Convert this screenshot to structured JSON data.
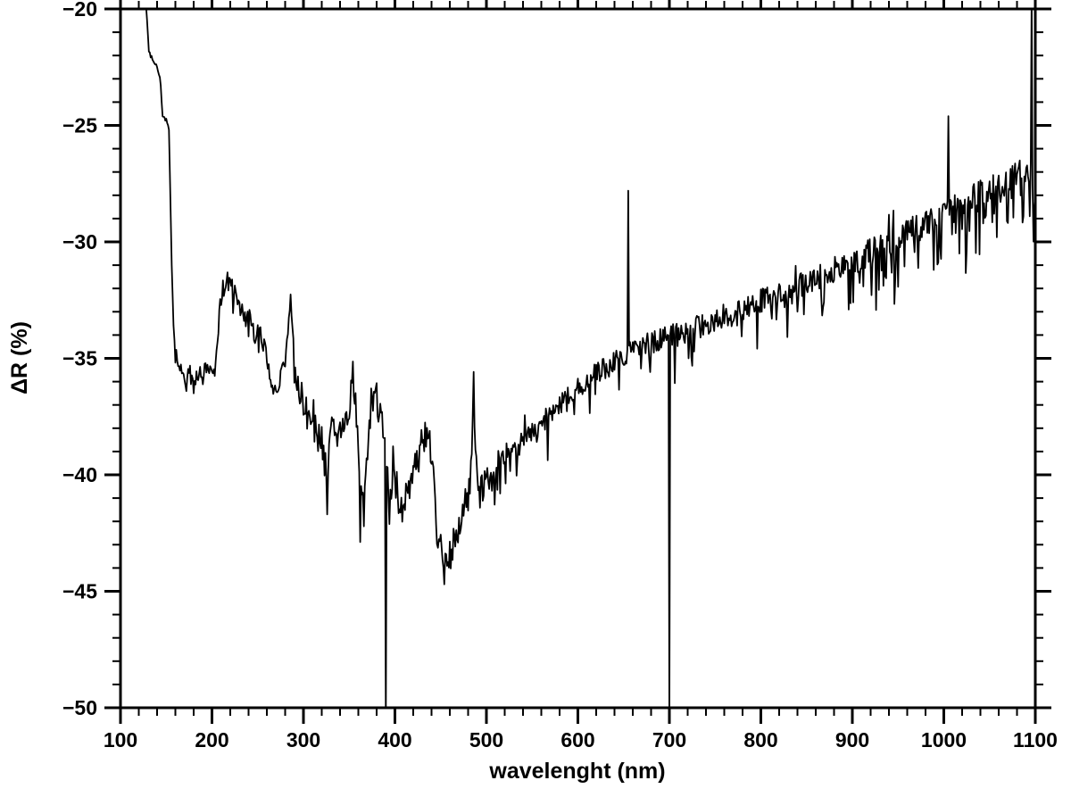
{
  "chart_data": {
    "type": "line",
    "title": "",
    "xlabel": "wavelenght (nm)",
    "ylabel": "ΔR (%)",
    "xlim": [
      100,
      1100
    ],
    "ylim": [
      -50,
      -20
    ],
    "grid": false,
    "legend": "none",
    "line_color": "#000000",
    "x_ticks": [
      100,
      200,
      300,
      400,
      500,
      600,
      700,
      800,
      900,
      1000,
      1100
    ],
    "x_tick_labels": [
      "100",
      "200",
      "300",
      "400",
      "500",
      "600",
      "700",
      "800",
      "900",
      "1000",
      "1100"
    ],
    "x_minor_step": 20,
    "y_ticks": [
      -20,
      -25,
      -30,
      -35,
      -40,
      -45,
      -50
    ],
    "y_tick_labels": [
      "−20",
      "−25",
      "−30",
      "−35",
      "−40",
      "−45",
      "−50"
    ],
    "y_minor_step": 1,
    "x_start": 128,
    "baseline": [
      [
        128,
        -19.8
      ],
      [
        131,
        -21.8
      ],
      [
        134,
        -22.1
      ],
      [
        138,
        -22.3
      ],
      [
        141,
        -22.6
      ],
      [
        144,
        -23.2
      ],
      [
        146,
        -24.6
      ],
      [
        151,
        -24.8
      ],
      [
        153,
        -25.2
      ],
      [
        154,
        -27.0
      ],
      [
        156,
        -31.0
      ],
      [
        158,
        -33.5
      ],
      [
        160,
        -34.8
      ],
      [
        163,
        -35.3
      ],
      [
        168,
        -35.6
      ],
      [
        172,
        -36.0
      ],
      [
        176,
        -35.7
      ],
      [
        180,
        -36.2
      ],
      [
        185,
        -35.6
      ],
      [
        190,
        -35.8
      ],
      [
        195,
        -35.4
      ],
      [
        200,
        -35.9
      ],
      [
        204,
        -35.2
      ],
      [
        208,
        -33.0
      ],
      [
        212,
        -32.0
      ],
      [
        216,
        -31.6
      ],
      [
        220,
        -31.9
      ],
      [
        224,
        -32.2
      ],
      [
        228,
        -32.4
      ],
      [
        232,
        -32.9
      ],
      [
        236,
        -33.4
      ],
      [
        240,
        -33.2
      ],
      [
        244,
        -33.8
      ],
      [
        248,
        -34.2
      ],
      [
        252,
        -33.6
      ],
      [
        256,
        -34.4
      ],
      [
        260,
        -35.0
      ],
      [
        264,
        -36.3
      ],
      [
        268,
        -36.6
      ],
      [
        272,
        -36.2
      ],
      [
        276,
        -35.6
      ],
      [
        280,
        -35.0
      ],
      [
        284,
        -33.6
      ],
      [
        286,
        -32.3
      ],
      [
        288,
        -34.0
      ],
      [
        292,
        -35.8
      ],
      [
        296,
        -36.6
      ],
      [
        300,
        -36.9
      ],
      [
        305,
        -37.4
      ],
      [
        310,
        -37.9
      ],
      [
        315,
        -38.3
      ],
      [
        320,
        -38.6
      ],
      [
        324,
        -40.3
      ],
      [
        328,
        -38.5
      ],
      [
        332,
        -38.2
      ],
      [
        336,
        -38.4
      ],
      [
        340,
        -37.9
      ],
      [
        345,
        -38.1
      ],
      [
        350,
        -37.4
      ],
      [
        354,
        -35.4
      ],
      [
        358,
        -37.6
      ],
      [
        362,
        -40.8
      ],
      [
        366,
        -41.5
      ],
      [
        370,
        -39.2
      ],
      [
        374,
        -36.8
      ],
      [
        378,
        -36.4
      ],
      [
        382,
        -37.1
      ],
      [
        386,
        -37.6
      ],
      [
        390,
        -38.5
      ],
      [
        394,
        -41.8
      ],
      [
        398,
        -39.4
      ],
      [
        402,
        -40.6
      ],
      [
        406,
        -41.6
      ],
      [
        410,
        -41.2
      ],
      [
        414,
        -40.6
      ],
      [
        418,
        -40.2
      ],
      [
        422,
        -39.8
      ],
      [
        426,
        -39.3
      ],
      [
        430,
        -38.6
      ],
      [
        434,
        -38.2
      ],
      [
        438,
        -38.8
      ],
      [
        442,
        -40.2
      ],
      [
        446,
        -42.8
      ],
      [
        450,
        -43.2
      ],
      [
        454,
        -44.2
      ],
      [
        458,
        -43.6
      ],
      [
        462,
        -43.2
      ],
      [
        466,
        -42.9
      ],
      [
        470,
        -42.4
      ],
      [
        474,
        -41.6
      ],
      [
        478,
        -41.2
      ],
      [
        482,
        -40.8
      ],
      [
        486,
        -36.6
      ],
      [
        488,
        -39.0
      ],
      [
        492,
        -40.9
      ],
      [
        496,
        -40.4
      ],
      [
        500,
        -40.1
      ],
      [
        505,
        -40.4
      ],
      [
        510,
        -39.7
      ],
      [
        515,
        -39.3
      ],
      [
        520,
        -39.0
      ],
      [
        525,
        -38.8
      ],
      [
        530,
        -38.6
      ],
      [
        535,
        -38.9
      ],
      [
        540,
        -38.4
      ],
      [
        545,
        -38.2
      ],
      [
        550,
        -38.0
      ],
      [
        555,
        -38.2
      ],
      [
        560,
        -37.9
      ],
      [
        565,
        -37.6
      ],
      [
        570,
        -37.4
      ],
      [
        575,
        -37.2
      ],
      [
        580,
        -37.0
      ],
      [
        585,
        -36.9
      ],
      [
        590,
        -36.7
      ],
      [
        595,
        -36.4
      ],
      [
        600,
        -36.2
      ],
      [
        610,
        -35.9
      ],
      [
        620,
        -35.7
      ],
      [
        630,
        -35.4
      ],
      [
        640,
        -35.2
      ],
      [
        650,
        -34.9
      ],
      [
        660,
        -34.6
      ],
      [
        670,
        -34.5
      ],
      [
        680,
        -34.3
      ],
      [
        690,
        -34.2
      ],
      [
        700,
        -34.1
      ],
      [
        710,
        -34.0
      ],
      [
        720,
        -33.9
      ],
      [
        730,
        -33.7
      ],
      [
        740,
        -33.6
      ],
      [
        750,
        -33.4
      ],
      [
        760,
        -33.2
      ],
      [
        770,
        -33.1
      ],
      [
        780,
        -32.9
      ],
      [
        790,
        -32.7
      ],
      [
        800,
        -32.5
      ],
      [
        810,
        -32.4
      ],
      [
        820,
        -32.2
      ],
      [
        830,
        -32.1
      ],
      [
        840,
        -31.9
      ],
      [
        850,
        -31.8
      ],
      [
        860,
        -31.6
      ],
      [
        870,
        -31.4
      ],
      [
        880,
        -31.2
      ],
      [
        890,
        -31.0
      ],
      [
        900,
        -30.8
      ],
      [
        910,
        -30.6
      ],
      [
        920,
        -30.4
      ],
      [
        930,
        -30.2
      ],
      [
        940,
        -30.0
      ],
      [
        950,
        -29.8
      ],
      [
        960,
        -29.6
      ],
      [
        970,
        -29.4
      ],
      [
        980,
        -29.2
      ],
      [
        990,
        -29.0
      ],
      [
        1000,
        -28.8
      ],
      [
        1010,
        -28.6
      ],
      [
        1020,
        -28.4
      ],
      [
        1030,
        -28.2
      ],
      [
        1040,
        -28.0
      ],
      [
        1050,
        -27.8
      ],
      [
        1060,
        -27.6
      ],
      [
        1070,
        -27.4
      ],
      [
        1080,
        -27.2
      ],
      [
        1090,
        -27.0
      ],
      [
        1095,
        -27.2
      ],
      [
        1100,
        -28.5
      ]
    ],
    "spikes": [
      {
        "x": 390,
        "y": -50.8
      },
      {
        "x": 655,
        "y": -27.8
      },
      {
        "x": 700,
        "y": -50.8
      },
      {
        "x": 1005,
        "y": -24.6
      },
      {
        "x": 1096,
        "y": -19.2
      }
    ],
    "noise": {
      "seed": 987654,
      "segments": [
        {
          "x0": 100,
          "x1": 160,
          "amp": 0.1,
          "spike_p": 0.0,
          "spike_mag": 0.0
        },
        {
          "x0": 160,
          "x1": 300,
          "amp": 0.45,
          "spike_p": 0.03,
          "spike_mag": 0.9
        },
        {
          "x0": 300,
          "x1": 500,
          "amp": 0.75,
          "spike_p": 0.06,
          "spike_mag": 1.5
        },
        {
          "x0": 500,
          "x1": 700,
          "amp": 0.5,
          "spike_p": 0.08,
          "spike_mag": 1.2
        },
        {
          "x0": 700,
          "x1": 900,
          "amp": 0.55,
          "spike_p": 0.15,
          "spike_mag": 1.6
        },
        {
          "x0": 900,
          "x1": 1101,
          "amp": 0.65,
          "spike_p": 0.26,
          "spike_mag": 2.2
        }
      ]
    }
  },
  "layout_notes": {
    "frame": "black box with outward tick marks on all four sides"
  }
}
